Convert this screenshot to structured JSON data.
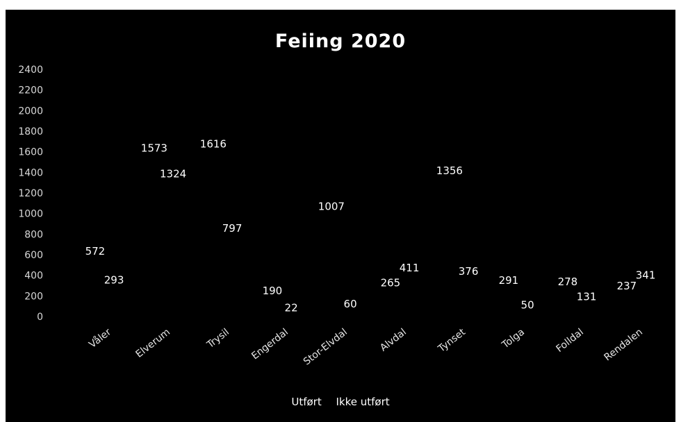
{
  "chart_data": {
    "type": "bar",
    "title": "Feiing 2020",
    "categories": [
      "Våler",
      "Elverum",
      "Trysil",
      "Engerdal",
      "Stor-Elvdal",
      "Alvdal",
      "Tynset",
      "Tolga",
      "Folldal",
      "Rendalen"
    ],
    "series": [
      {
        "name": "Utført",
        "values": [
          572,
          1573,
          1616,
          190,
          1007,
          265,
          1356,
          291,
          278,
          237
        ],
        "color": "#000000"
      },
      {
        "name": "Ikke utført",
        "values": [
          293,
          1324,
          797,
          22,
          60,
          411,
          376,
          50,
          131,
          341
        ],
        "color": "#000000"
      }
    ],
    "yticks": [
      0,
      200,
      400,
      600,
      800,
      1000,
      1200,
      1400,
      1600,
      1800,
      2000,
      2200,
      2400
    ],
    "ylim": [
      0,
      2400
    ],
    "grid": false,
    "legend_position": "bottom",
    "background": "#000000",
    "text_color": "#ffffff"
  }
}
